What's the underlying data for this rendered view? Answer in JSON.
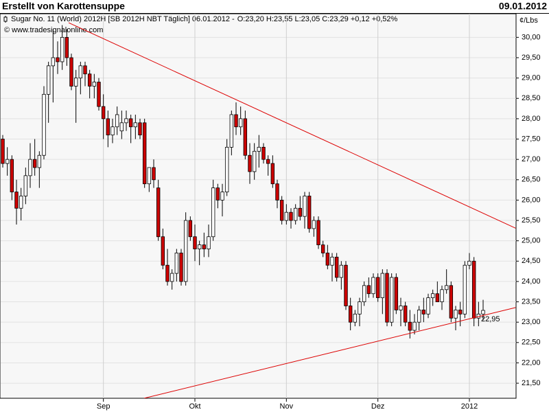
{
  "header": {
    "title": "Erstellt von Karottensuppe",
    "date": "09.01.2012"
  },
  "chart_data": {
    "type": "candlestick",
    "instrument": "Sugar No. 11 (World) 2012H [SB 2012H NBT  Täglich] 06.01.2012 -",
    "quote": "O:23,20 H:23,55 L:23,05 C:23,29 +0,12 +0,52%",
    "source": "© www.tradesignalonline.com",
    "y_label": "¢/Lbs",
    "up_color": "#ffffff",
    "down_color": "#cc0000",
    "quote_color": "#00a000",
    "categories": [
      null,
      null,
      null,
      null,
      null,
      null,
      null,
      null,
      null,
      null,
      null,
      null,
      null,
      null,
      null,
      null,
      null,
      null,
      null,
      null,
      null,
      null,
      "Sep",
      null,
      null,
      null,
      null,
      null,
      null,
      null,
      null,
      null,
      null,
      null,
      null,
      null,
      null,
      null,
      null,
      null,
      null,
      null,
      "Okt",
      null,
      null,
      null,
      null,
      null,
      null,
      null,
      null,
      null,
      null,
      null,
      null,
      null,
      null,
      null,
      null,
      null,
      null,
      null,
      "Nov",
      null,
      null,
      null,
      null,
      null,
      null,
      null,
      null,
      null,
      null,
      null,
      null,
      null,
      null,
      null,
      null,
      null,
      null,
      null,
      "Dez",
      null,
      null,
      null,
      null,
      null,
      null,
      null,
      null,
      null,
      null,
      null,
      null,
      null,
      null,
      null,
      null,
      null,
      null,
      null,
      "2012",
      null,
      null,
      null
    ],
    "open": [
      27.5,
      26.9,
      27.0,
      26.2,
      25.8,
      26.1,
      26.6,
      27.0,
      26.8,
      27.1,
      28.6,
      29.3,
      29.5,
      29.4,
      30.0,
      29.5,
      28.8,
      29.0,
      29.3,
      29.1,
      28.8,
      28.9,
      28.3,
      28.0,
      27.6,
      27.8,
      27.7,
      27.9,
      28.0,
      27.8,
      27.9,
      27.9,
      26.4,
      26.8,
      26.3,
      25.1,
      24.4,
      24.0,
      24.2,
      24.7,
      24.0,
      25.5,
      25.1,
      24.8,
      24.9,
      24.8,
      25.1,
      26.3,
      26.0,
      26.2,
      27.3,
      28.1,
      27.8,
      28.0,
      27.1,
      26.7,
      27.2,
      27.3,
      27.0,
      26.9,
      26.4,
      26.0,
      25.5,
      25.7,
      25.5,
      25.8,
      25.6,
      26.1,
      25.3,
      25.5,
      24.9,
      24.7,
      24.4,
      24.6,
      24.1,
      24.4,
      23.4,
      23.0,
      23.2,
      23.5,
      23.9,
      23.7,
      24.1,
      23.6,
      24.2,
      23.0,
      24.1,
      23.3,
      23.4,
      23.0,
      22.8,
      23.0,
      23.3,
      23.2,
      23.6,
      23.7,
      23.5,
      23.8,
      23.9,
      23.1,
      23.3,
      23.2,
      24.4,
      24.5,
      23.1,
      23.2
    ],
    "high": [
      27.6,
      27.3,
      27.1,
      26.5,
      26.3,
      26.8,
      27.4,
      27.5,
      27.2,
      28.8,
      29.4,
      30.2,
      29.9,
      30.3,
      30.2,
      29.6,
      29.2,
      29.4,
      29.4,
      29.2,
      29.1,
      29.0,
      28.6,
      28.2,
      28.0,
      28.3,
      28.2,
      28.2,
      28.1,
      28.1,
      28.0,
      28.0,
      26.8,
      27.0,
      26.5,
      25.3,
      24.8,
      24.3,
      24.8,
      24.8,
      25.7,
      25.6,
      25.4,
      25.0,
      25.2,
      25.4,
      26.5,
      26.4,
      26.4,
      27.5,
      28.2,
      28.4,
      28.3,
      28.2,
      27.4,
      27.4,
      27.6,
      27.4,
      27.1,
      27.1,
      26.5,
      26.1,
      25.9,
      25.8,
      25.9,
      26.1,
      26.2,
      26.2,
      25.6,
      25.6,
      25.0,
      24.9,
      24.7,
      24.7,
      24.5,
      24.5,
      23.6,
      23.3,
      23.6,
      24.0,
      24.1,
      24.2,
      24.2,
      24.3,
      24.3,
      24.2,
      24.2,
      23.6,
      23.5,
      23.3,
      23.2,
      23.4,
      23.6,
      23.7,
      23.8,
      24.0,
      23.9,
      24.3,
      24.0,
      23.4,
      23.5,
      24.5,
      24.7,
      24.6,
      23.5,
      23.55
    ],
    "low": [
      26.8,
      26.6,
      26.0,
      25.4,
      25.5,
      25.9,
      26.3,
      26.6,
      26.3,
      27.0,
      27.9,
      28.4,
      29.1,
      29.2,
      29.3,
      28.7,
      27.9,
      28.6,
      28.8,
      28.5,
      28.5,
      28.2,
      27.5,
      27.3,
      27.4,
      27.6,
      27.5,
      27.7,
      27.4,
      27.5,
      27.5,
      26.3,
      26.2,
      26.3,
      25.0,
      24.3,
      23.9,
      23.8,
      24.0,
      23.9,
      23.9,
      25.0,
      24.5,
      24.4,
      24.6,
      24.6,
      25.0,
      25.8,
      25.6,
      26.1,
      27.1,
      27.6,
      27.6,
      27.0,
      26.4,
      26.5,
      26.8,
      26.9,
      26.6,
      26.3,
      25.8,
      25.4,
      25.4,
      25.3,
      25.4,
      25.5,
      25.3,
      25.2,
      25.1,
      24.8,
      24.6,
      24.3,
      24.0,
      24.0,
      23.8,
      23.3,
      22.8,
      22.9,
      22.9,
      23.4,
      23.6,
      23.6,
      23.5,
      23.2,
      22.9,
      22.9,
      23.2,
      22.9,
      22.9,
      22.6,
      22.7,
      22.8,
      23.0,
      23.1,
      23.4,
      23.5,
      23.3,
      23.7,
      23.0,
      22.8,
      22.9,
      23.1,
      24.3,
      22.9,
      22.9,
      23.05
    ],
    "close": [
      26.9,
      27.0,
      26.2,
      25.8,
      26.1,
      26.6,
      27.0,
      26.8,
      27.1,
      28.6,
      29.3,
      29.5,
      29.4,
      30.0,
      29.5,
      28.8,
      29.0,
      29.3,
      29.1,
      28.8,
      28.9,
      28.3,
      28.0,
      27.6,
      27.8,
      28.1,
      27.9,
      28.0,
      27.8,
      27.9,
      27.6,
      26.4,
      26.8,
      26.5,
      25.1,
      24.4,
      24.0,
      24.2,
      24.7,
      24.0,
      25.5,
      25.1,
      24.8,
      24.9,
      24.8,
      25.1,
      26.3,
      26.0,
      26.2,
      27.3,
      28.1,
      27.8,
      28.0,
      27.1,
      26.7,
      27.2,
      27.3,
      27.0,
      26.9,
      26.4,
      26.0,
      25.5,
      25.7,
      25.5,
      25.8,
      25.6,
      26.1,
      25.3,
      25.5,
      24.9,
      24.7,
      24.4,
      24.6,
      24.1,
      24.4,
      23.4,
      23.0,
      23.2,
      23.5,
      23.9,
      23.7,
      24.1,
      23.6,
      24.2,
      23.0,
      24.1,
      23.3,
      23.4,
      23.0,
      22.8,
      23.0,
      23.3,
      23.2,
      23.6,
      23.7,
      23.5,
      23.8,
      23.9,
      23.1,
      23.3,
      23.2,
      24.4,
      24.5,
      23.1,
      23.2,
      23.29
    ],
    "ylim": [
      21.13,
      30.58
    ],
    "yticks": [
      {
        "value": 21.5,
        "label": "21,50"
      },
      {
        "value": 22,
        "label": "22,00"
      },
      {
        "value": 22.5,
        "label": "22,50"
      },
      {
        "value": 23,
        "label": "23,00"
      },
      {
        "value": 23.5,
        "label": "23,50"
      },
      {
        "value": 24,
        "label": "24,00"
      },
      {
        "value": 24.5,
        "label": "24,50"
      },
      {
        "value": 25,
        "label": "25,00"
      },
      {
        "value": 25.5,
        "label": "25,50"
      },
      {
        "value": 26,
        "label": "26,00"
      },
      {
        "value": 26.5,
        "label": "26,50"
      },
      {
        "value": 27,
        "label": "27,00"
      },
      {
        "value": 27.5,
        "label": "27,50"
      },
      {
        "value": 28,
        "label": "28,00"
      },
      {
        "value": 28.5,
        "label": "28,50"
      },
      {
        "value": 29,
        "label": "29,00"
      },
      {
        "value": 29.5,
        "label": "29,50"
      },
      {
        "value": 30,
        "label": "30,00"
      }
    ],
    "grid": true,
    "trendlines": [
      {
        "color": "#dd0000",
        "x": [
          14.4,
          112.1
        ],
        "y": [
          30.36,
          25.31
        ]
      },
      {
        "color": "#dd0000",
        "x": [
          30.9,
          112.1
        ],
        "y": [
          21.13,
          23.36
        ]
      }
    ],
    "annotations": [
      {
        "text": "22,95",
        "value": 22.95,
        "color": "#dd0000"
      }
    ]
  }
}
